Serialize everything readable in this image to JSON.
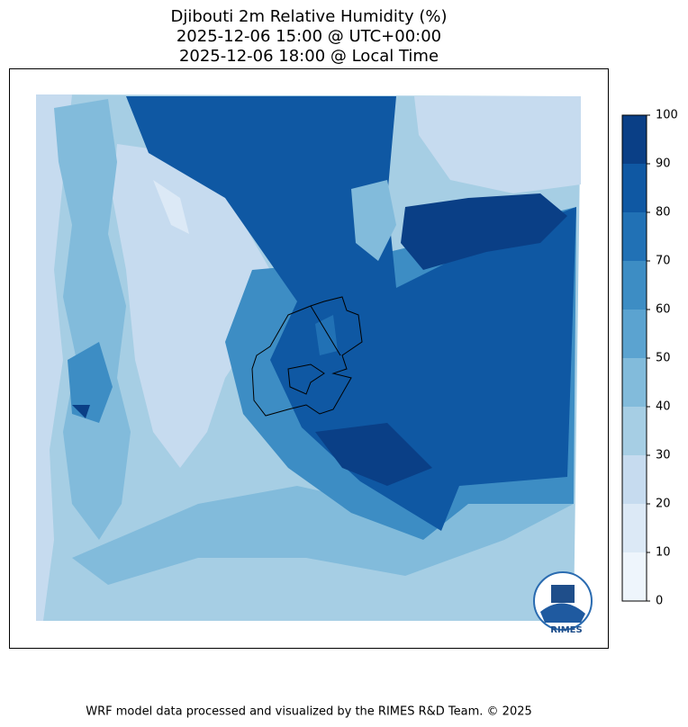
{
  "title": [
    "Djibouti 2m Relative Humidity (%)",
    "2025-12-06 15:00 @ UTC+00:00",
    "2025-12-06 18:00 @ Local Time"
  ],
  "colorbar": {
    "ticks": [
      0,
      10,
      20,
      30,
      40,
      50,
      60,
      70,
      80,
      90,
      100
    ],
    "colors": [
      "#eef5fc",
      "#dce9f6",
      "#c6dbef",
      "#a6cee4",
      "#82bbdb",
      "#5ba3d0",
      "#3d8dc4",
      "#2171b5",
      "#0f58a3",
      "#0a3f86"
    ]
  },
  "logo": "RIMES",
  "footer": "WRF model data processed and visualized by the RIMES R&D Team. © 2025"
}
